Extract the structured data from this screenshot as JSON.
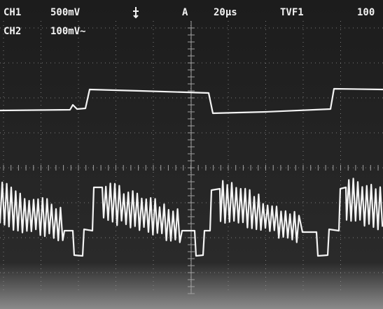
{
  "screen": {
    "ch1_label": "CH1",
    "ch1_scale": "500mV",
    "trigger_mode": "A",
    "timebase": "20μs",
    "trigger_source": "TVF1",
    "trigger_level": "100",
    "ch2_label": "CH2",
    "ch2_scale": "100mV~"
  }
}
